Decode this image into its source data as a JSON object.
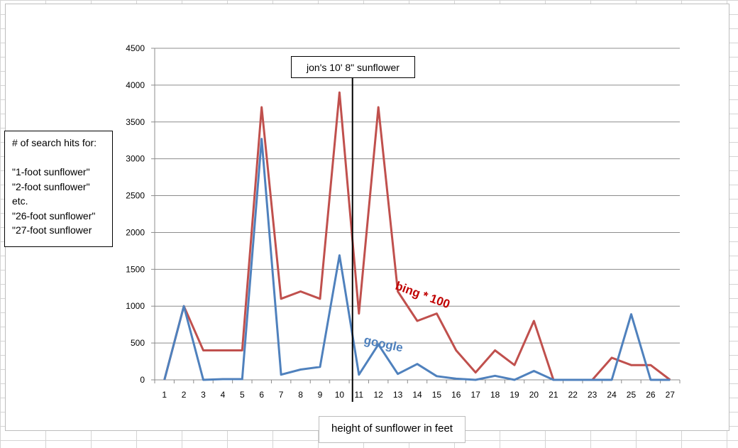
{
  "chart_data": {
    "type": "line",
    "title": "",
    "xlabel": "height of sunflower in feet",
    "ylabel": "",
    "ylim": [
      0,
      4500
    ],
    "y_ticks": [
      0,
      500,
      1000,
      1500,
      2000,
      2500,
      3000,
      3500,
      4000,
      4500
    ],
    "grid": true,
    "categories": [
      "1",
      "2",
      "3",
      "4",
      "5",
      "6",
      "7",
      "8",
      "9",
      "10",
      "11",
      "12",
      "13",
      "14",
      "15",
      "16",
      "17",
      "18",
      "19",
      "20",
      "21",
      "22",
      "23",
      "24",
      "25",
      "26",
      "27"
    ],
    "series": [
      {
        "name": "google",
        "color": "#4f81bd",
        "values": [
          0,
          1000,
          0,
          10,
          10,
          3270,
          70,
          140,
          175,
          1690,
          70,
          480,
          80,
          215,
          50,
          15,
          0,
          55,
          0,
          120,
          0,
          0,
          0,
          0,
          890,
          0,
          0
        ]
      },
      {
        "name": "bing * 100",
        "color": "#c0504d",
        "values": [
          0,
          1000,
          400,
          400,
          400,
          3700,
          1100,
          1200,
          1100,
          3900,
          900,
          3700,
          1200,
          800,
          900,
          400,
          100,
          400,
          200,
          800,
          0,
          0,
          0,
          300,
          200,
          200,
          0
        ]
      }
    ],
    "annotation": {
      "text": "jon's 10' 8\" sunflower",
      "x_value": 10.67
    },
    "legend": {
      "lines": [
        "# of search hits for:",
        "",
        "\"1-foot sunflower\"",
        "\"2-foot sunflower\"",
        "etc.",
        "\"26-foot sunflower\"",
        "\"27-foot sunflower"
      ]
    }
  }
}
